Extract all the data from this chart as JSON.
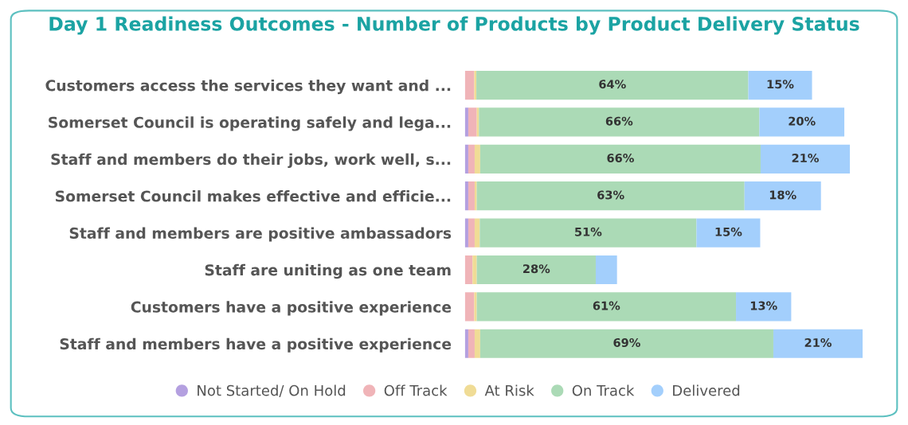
{
  "chart_data": {
    "type": "bar",
    "orientation": "horizontal",
    "stacked": true,
    "title": "Day 1 Readiness Outcomes - Number of Products by Product Delivery Status",
    "categories": [
      "Customers access the services they want and ...",
      "Somerset Council is operating safely and lega...",
      "Staff and members do their jobs, work well, s...",
      "Somerset Council makes effective and efficie...",
      "Staff and members are positive ambassadors",
      "Staff are uniting as one team",
      "Customers have a positive experience",
      "Staff and members have a positive experience"
    ],
    "series": [
      {
        "name": "Not Started/ On Hold",
        "color": "#b4a0e0",
        "values": [
          0,
          0.8,
          0.8,
          0.8,
          0.8,
          0,
          0,
          0.8
        ]
      },
      {
        "name": "Off Track",
        "color": "#f0b4b8",
        "values": [
          2.2,
          2,
          1.5,
          1.5,
          1.5,
          1.8,
          2.2,
          1.5
        ]
      },
      {
        "name": "At Risk",
        "color": "#f0dc96",
        "values": [
          0.5,
          0.5,
          1.3,
          0.5,
          1.2,
          1,
          0.6,
          1.3
        ]
      },
      {
        "name": "On Track",
        "color": "#abdab6",
        "values": [
          64,
          66,
          66,
          63,
          51,
          28,
          61,
          69
        ],
        "value_labels": [
          "64%",
          "66%",
          "66%",
          "63%",
          "51%",
          "28%",
          "61%",
          "69%"
        ]
      },
      {
        "name": "Delivered",
        "color": "#a3cffc",
        "values": [
          15,
          20,
          21,
          18,
          15,
          5,
          13,
          21
        ],
        "value_labels": [
          "15%",
          "20%",
          "21%",
          "18%",
          "15%",
          null,
          "13%",
          "21%"
        ]
      }
    ],
    "tick_labels": "y",
    "legend": "bottom",
    "grid": false
  }
}
